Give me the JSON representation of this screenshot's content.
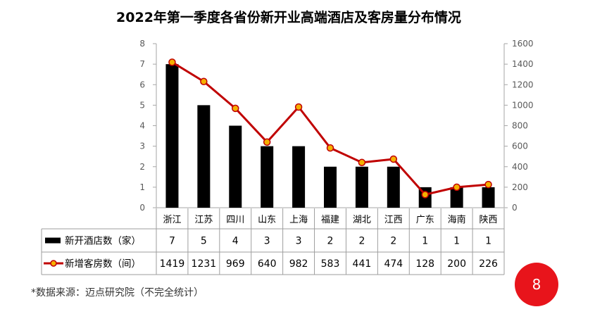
{
  "chart_data": {
    "type": "bar",
    "title": "2022年第一季度各省份新开业高端酒店及客房量分布情况",
    "categories": [
      "浙江",
      "江苏",
      "四川",
      "山东",
      "上海",
      "福建",
      "湖北",
      "江西",
      "广东",
      "海南",
      "陕西"
    ],
    "series": [
      {
        "name": "新开酒店数（家）",
        "type": "bar",
        "axis": "left",
        "color": "#000000",
        "values": [
          7,
          5,
          4,
          3,
          3,
          2,
          2,
          2,
          1,
          1,
          1
        ]
      },
      {
        "name": "新增客房数（间）",
        "type": "line",
        "axis": "right",
        "color": "#C00000",
        "marker_color": "#F5B000",
        "values": [
          1419,
          1231,
          969,
          640,
          982,
          583,
          441,
          474,
          128,
          200,
          226
        ]
      }
    ],
    "y_left": {
      "ylim": [
        0,
        8
      ],
      "ticks": [
        "0",
        "1",
        "2",
        "3",
        "4",
        "5",
        "6",
        "7",
        "8"
      ]
    },
    "y_right": {
      "ylim": [
        0,
        1600
      ],
      "ticks": [
        "0",
        "200",
        "400",
        "600",
        "800",
        "1000",
        "1200",
        "1400",
        "1600"
      ]
    },
    "grid": false,
    "legend": "data-table",
    "note": "*数据来源：迈点研究院（不完全统计）"
  },
  "page_badge": {
    "text": "8",
    "color": "#E8141B"
  }
}
